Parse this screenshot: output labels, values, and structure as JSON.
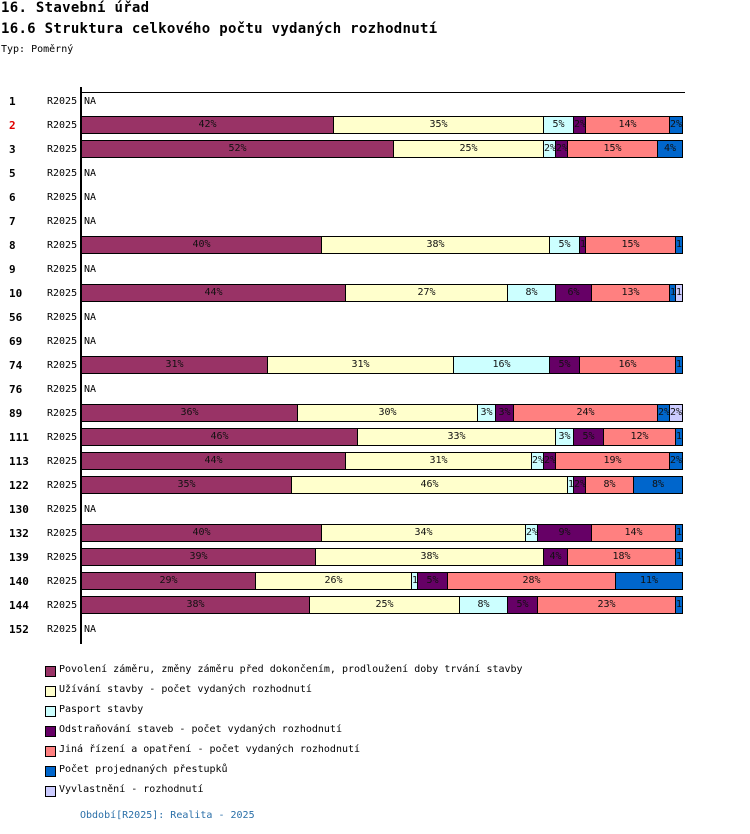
{
  "header": {
    "title": "16. Stavební úřad",
    "subtitle": "16.6 Struktura celkového počtu vydaných rozhodnutí",
    "type_label": "Typ: Poměrný"
  },
  "footer": "Období[R2025]: Realita - 2025",
  "na_label": "NA",
  "highlight_color": "#e00000",
  "chart_data": {
    "type": "bar",
    "orientation": "horizontal",
    "stacked": true,
    "normalized": true,
    "title": "16.6 Struktura celkového počtu vydaných rozhodnutí",
    "xlabel": "",
    "ylabel": "",
    "xlim": [
      0,
      100
    ],
    "grid": false,
    "legend_position": "bottom",
    "series": [
      {
        "name": "Povolení záměru,  změny záměru před dokončením, prodloužení doby trvání stavby",
        "color": "#993366"
      },
      {
        "name": "Užívání stavby - počet vydaných rozhodnutí",
        "color": "#FFFFCC"
      },
      {
        "name": "Pasport stavby",
        "color": "#CCFFFF"
      },
      {
        "name": "Odstraňování staveb - počet vydaných rozhodnutí",
        "color": "#660066"
      },
      {
        "name": "Jiná řízení a opatření - počet vydaných rozhodnutí",
        "color": "#FF8080"
      },
      {
        "name": "Počet projednaných přestupků",
        "color": "#0066CC"
      },
      {
        "name": "Vyvlastnění - rozhodnutí",
        "color": "#CCCCFF"
      }
    ],
    "rows": [
      {
        "id": "1",
        "period": "R2025",
        "values": null
      },
      {
        "id": "2",
        "period": "R2025",
        "highlight": true,
        "values": [
          42,
          35,
          5,
          2,
          14,
          2,
          0
        ]
      },
      {
        "id": "3",
        "period": "R2025",
        "values": [
          52,
          25,
          2,
          2,
          15,
          4,
          0
        ]
      },
      {
        "id": "5",
        "period": "R2025",
        "values": null
      },
      {
        "id": "6",
        "period": "R2025",
        "values": null
      },
      {
        "id": "7",
        "period": "R2025",
        "values": null
      },
      {
        "id": "8",
        "period": "R2025",
        "values": [
          40,
          38,
          5,
          1,
          15,
          1,
          0
        ]
      },
      {
        "id": "9",
        "period": "R2025",
        "values": null
      },
      {
        "id": "10",
        "period": "R2025",
        "values": [
          44,
          27,
          8,
          6,
          13,
          1,
          1
        ]
      },
      {
        "id": "56",
        "period": "R2025",
        "values": null
      },
      {
        "id": "69",
        "period": "R2025",
        "values": null
      },
      {
        "id": "74",
        "period": "R2025",
        "values": [
          31,
          31,
          16,
          5,
          16,
          1,
          0
        ]
      },
      {
        "id": "76",
        "period": "R2025",
        "values": null
      },
      {
        "id": "89",
        "period": "R2025",
        "values": [
          36,
          30,
          3,
          3,
          24,
          2,
          2
        ]
      },
      {
        "id": "111",
        "period": "R2025",
        "values": [
          46,
          33,
          3,
          5,
          12,
          1,
          0
        ]
      },
      {
        "id": "113",
        "period": "R2025",
        "values": [
          44,
          31,
          2,
          2,
          19,
          2,
          0
        ]
      },
      {
        "id": "122",
        "period": "R2025",
        "values": [
          35,
          46,
          1,
          2,
          8,
          8,
          0
        ]
      },
      {
        "id": "130",
        "period": "R2025",
        "values": null
      },
      {
        "id": "132",
        "period": "R2025",
        "values": [
          40,
          34,
          2,
          9,
          14,
          1,
          0
        ]
      },
      {
        "id": "139",
        "period": "R2025",
        "values": [
          39,
          38,
          0,
          4,
          18,
          1,
          0
        ]
      },
      {
        "id": "140",
        "period": "R2025",
        "values": [
          29,
          26,
          1,
          5,
          28,
          11,
          0
        ]
      },
      {
        "id": "144",
        "period": "R2025",
        "values": [
          38,
          25,
          8,
          5,
          23,
          1,
          0
        ]
      },
      {
        "id": "152",
        "period": "R2025",
        "values": null
      }
    ]
  }
}
